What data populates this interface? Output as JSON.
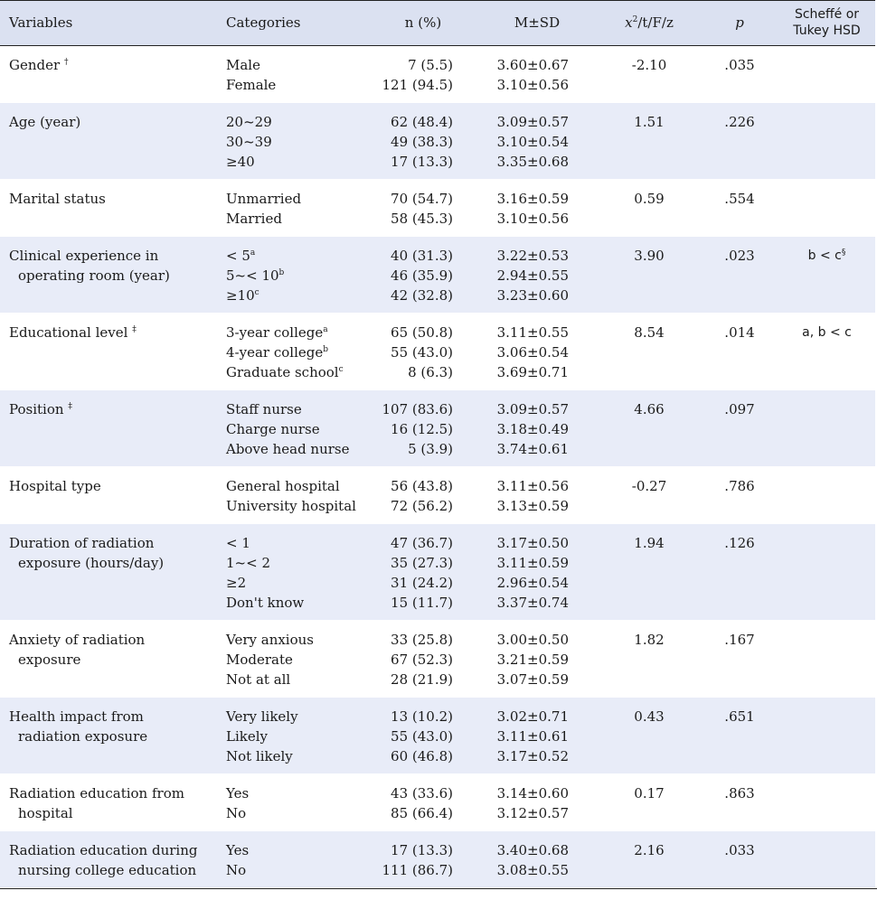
{
  "header": {
    "variables": "Variables",
    "categories": "Categories",
    "n_pct": "n (%)",
    "msd": "M±SD",
    "stat_x": "x",
    "stat_sup": "2",
    "stat_rest": "/t/F/z",
    "p": "p",
    "posthoc_1": "Scheffé or",
    "posthoc_2": "Tukey HSD"
  },
  "rows": [
    {
      "var": [
        "Gender"
      ],
      "mark": "†",
      "cats": [
        {
          "t": "Male",
          "s": ""
        },
        {
          "t": "Female",
          "s": ""
        }
      ],
      "n": [
        "7 (5.5)",
        "121 (94.5)"
      ],
      "msd": [
        "3.60±0.67",
        "3.10±0.56"
      ],
      "stat": "-2.10",
      "p": ".035",
      "post": "",
      "post_sup": ""
    },
    {
      "var": [
        "Age (year)"
      ],
      "mark": "",
      "cats": [
        {
          "t": "20~29",
          "s": ""
        },
        {
          "t": "30~39",
          "s": ""
        },
        {
          "t": "≥40",
          "s": ""
        }
      ],
      "n": [
        "62 (48.4)",
        "49 (38.3)",
        "17 (13.3)"
      ],
      "msd": [
        "3.09±0.57",
        "3.10±0.54",
        "3.35±0.68"
      ],
      "stat": "1.51",
      "p": ".226",
      "post": "",
      "post_sup": ""
    },
    {
      "var": [
        "Marital status"
      ],
      "mark": "",
      "cats": [
        {
          "t": "Unmarried",
          "s": ""
        },
        {
          "t": "Married",
          "s": ""
        }
      ],
      "n": [
        "70 (54.7)",
        "58 (45.3)"
      ],
      "msd": [
        "3.16±0.59",
        "3.10±0.56"
      ],
      "stat": "0.59",
      "p": ".554",
      "post": "",
      "post_sup": ""
    },
    {
      "var": [
        "Clinical experience in",
        "operating room (year)"
      ],
      "mark": "",
      "cats": [
        {
          "t": "< 5",
          "s": "a"
        },
        {
          "t": "5~< 10",
          "s": "b"
        },
        {
          "t": "≥10",
          "s": "c"
        }
      ],
      "n": [
        "40 (31.3)",
        "46 (35.9)",
        "42 (32.8)"
      ],
      "msd": [
        "3.22±0.53",
        "2.94±0.55",
        "3.23±0.60"
      ],
      "stat": "3.90",
      "p": ".023",
      "post": "b < c",
      "post_sup": "§"
    },
    {
      "var": [
        "Educational level"
      ],
      "mark": "‡",
      "cats": [
        {
          "t": "3-year college",
          "s": "a"
        },
        {
          "t": "4-year college",
          "s": "b"
        },
        {
          "t": "Graduate school",
          "s": "c"
        }
      ],
      "n": [
        "65 (50.8)",
        "55 (43.0)",
        "8 (6.3)"
      ],
      "msd": [
        "3.11±0.55",
        "3.06±0.54",
        "3.69±0.71"
      ],
      "stat": "8.54",
      "p": ".014",
      "post": "a, b < c",
      "post_sup": ""
    },
    {
      "var": [
        "Position"
      ],
      "mark": "‡",
      "cats": [
        {
          "t": "Staff nurse",
          "s": ""
        },
        {
          "t": "Charge nurse",
          "s": ""
        },
        {
          "t": "Above head nurse",
          "s": ""
        }
      ],
      "n": [
        "107 (83.6)",
        "16 (12.5)",
        "5 (3.9)"
      ],
      "msd": [
        "3.09±0.57",
        "3.18±0.49",
        "3.74±0.61"
      ],
      "stat": "4.66",
      "p": ".097",
      "post": "",
      "post_sup": ""
    },
    {
      "var": [
        "Hospital type"
      ],
      "mark": "",
      "cats": [
        {
          "t": "General hospital",
          "s": ""
        },
        {
          "t": "University hospital",
          "s": ""
        }
      ],
      "n": [
        "56 (43.8)",
        "72 (56.2)"
      ],
      "msd": [
        "3.11±0.56",
        "3.13±0.59"
      ],
      "stat": "-0.27",
      "p": ".786",
      "post": "",
      "post_sup": ""
    },
    {
      "var": [
        "Duration of radiation",
        "exposure (hours/day)"
      ],
      "mark": "",
      "cats": [
        {
          "t": "< 1",
          "s": ""
        },
        {
          "t": "1~< 2",
          "s": ""
        },
        {
          "t": "≥2",
          "s": ""
        },
        {
          "t": "Don't know",
          "s": ""
        }
      ],
      "n": [
        "47 (36.7)",
        "35 (27.3)",
        "31 (24.2)",
        "15 (11.7)"
      ],
      "msd": [
        "3.17±0.50",
        "3.11±0.59",
        "2.96±0.54",
        "3.37±0.74"
      ],
      "stat": "1.94",
      "p": ".126",
      "post": "",
      "post_sup": ""
    },
    {
      "var": [
        "Anxiety of radiation",
        "exposure"
      ],
      "mark": "",
      "cats": [
        {
          "t": "Very anxious",
          "s": ""
        },
        {
          "t": "Moderate",
          "s": ""
        },
        {
          "t": "Not at all",
          "s": ""
        }
      ],
      "n": [
        "33 (25.8)",
        "67 (52.3)",
        "28 (21.9)"
      ],
      "msd": [
        "3.00±0.50",
        "3.21±0.59",
        "3.07±0.59"
      ],
      "stat": "1.82",
      "p": ".167",
      "post": "",
      "post_sup": ""
    },
    {
      "var": [
        "Health impact from",
        "radiation exposure"
      ],
      "mark": "",
      "cats": [
        {
          "t": "Very likely",
          "s": ""
        },
        {
          "t": "Likely",
          "s": ""
        },
        {
          "t": "Not likely",
          "s": ""
        }
      ],
      "n": [
        "13 (10.2)",
        "55 (43.0)",
        "60 (46.8)"
      ],
      "msd": [
        "3.02±0.71",
        "3.11±0.61",
        "3.17±0.52"
      ],
      "stat": "0.43",
      "p": ".651",
      "post": "",
      "post_sup": ""
    },
    {
      "var": [
        "Radiation education from",
        "hospital"
      ],
      "mark": "",
      "cats": [
        {
          "t": "Yes",
          "s": ""
        },
        {
          "t": "No",
          "s": ""
        }
      ],
      "n": [
        "43 (33.6)",
        "85 (66.4)"
      ],
      "msd": [
        "3.14±0.60",
        "3.12±0.57"
      ],
      "stat": "0.17",
      "p": ".863",
      "post": "",
      "post_sup": ""
    },
    {
      "var": [
        "Radiation education during",
        "nursing college education"
      ],
      "mark": "",
      "cats": [
        {
          "t": "Yes",
          "s": ""
        },
        {
          "t": "No",
          "s": ""
        }
      ],
      "n": [
        "17 (13.3)",
        "111 (86.7)"
      ],
      "msd": [
        "3.40±0.68",
        "3.08±0.55"
      ],
      "stat": "2.16",
      "p": ".033",
      "post": "",
      "post_sup": ""
    }
  ]
}
